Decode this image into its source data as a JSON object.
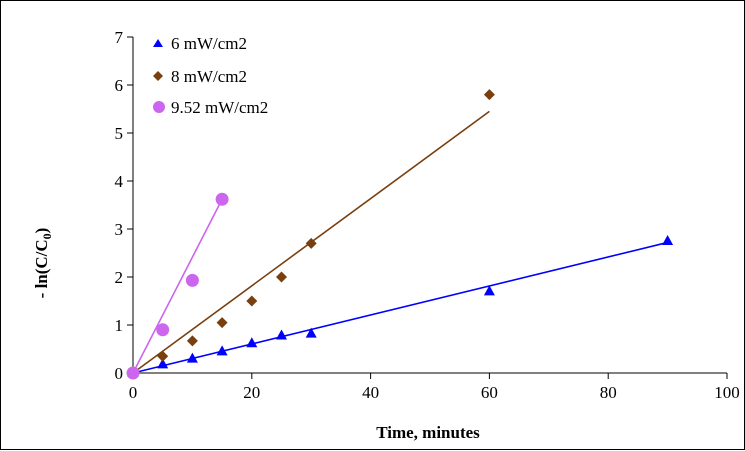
{
  "chart_data": {
    "type": "scatter",
    "xlabel": "Time, minutes",
    "ylabel_main": "- ln(C/C",
    "ylabel_sub": "0",
    "ylabel_close": ")",
    "xlim": [
      0,
      100
    ],
    "ylim": [
      0,
      7
    ],
    "xticks": [
      0,
      20,
      40,
      60,
      80,
      100
    ],
    "yticks": [
      0,
      1,
      2,
      3,
      4,
      5,
      6,
      7
    ],
    "grid": false,
    "legend_position": "top-left",
    "series": [
      {
        "name": "6 mW/cm2",
        "marker": "triangle",
        "color": "#0000ff",
        "x": [
          0,
          5,
          10,
          15,
          20,
          25,
          30,
          60,
          90
        ],
        "y": [
          0,
          0.18,
          0.3,
          0.45,
          0.62,
          0.78,
          0.82,
          1.7,
          2.75
        ],
        "fit": {
          "x": [
            0,
            90
          ],
          "y": [
            0,
            2.72
          ]
        }
      },
      {
        "name": "8 mW/cm2",
        "marker": "diamond",
        "color": "#7a3f0e",
        "x": [
          0,
          5,
          10,
          15,
          20,
          25,
          30,
          60
        ],
        "y": [
          0,
          0.35,
          0.67,
          1.05,
          1.5,
          2.0,
          2.7,
          5.8
        ],
        "fit": {
          "x": [
            0,
            60
          ],
          "y": [
            0,
            5.45
          ]
        }
      },
      {
        "name": "9.52 mW/cm2",
        "marker": "circle",
        "color": "#cc66ee",
        "x": [
          0,
          5,
          10,
          15
        ],
        "y": [
          0,
          0.9,
          1.93,
          3.62
        ],
        "fit": {
          "x": [
            0,
            15
          ],
          "y": [
            0,
            3.62
          ]
        }
      }
    ]
  }
}
